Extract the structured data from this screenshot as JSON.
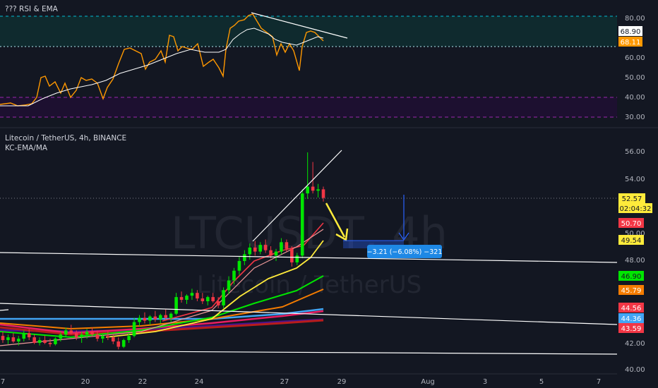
{
  "rsi_panel": {
    "title": "??? RSI & EMA",
    "right_axis_ticks": [
      "80.00",
      "60.00",
      "50.00",
      "40.00",
      "30.00"
    ],
    "rsi_value_badge": "68.11",
    "ema_value_badge": "68.90"
  },
  "price_panel": {
    "title": "Litecoin / TetherUS, 4h, BINANCE",
    "indicator": "KC-EMA/MA",
    "watermark_symbol": "LTCUSDT, 4h",
    "watermark_name": "Litecoin / TetherUS",
    "right_axis_ticks": [
      "56.00",
      "54.00",
      "50.00",
      "48.00",
      "42.00",
      "40.00"
    ],
    "current_price": "52.57",
    "countdown": "02:04:32",
    "badges": [
      {
        "text": "50.70",
        "color": "#f23645"
      },
      {
        "text": "49.54",
        "color": "#ffeb3b"
      },
      {
        "text": "46.90",
        "color": "#00e600"
      },
      {
        "text": "45.79",
        "color": "#f57c00"
      },
      {
        "text": "44.56",
        "color": "#f23645"
      },
      {
        "text": "44.36",
        "color": "#42a5f5"
      },
      {
        "text": "43.59",
        "color": "#f23645"
      }
    ],
    "measure_label": "−3.21 (−6.08%) −321"
  },
  "time_axis": {
    "labels": [
      "7",
      "20",
      "22",
      "24",
      "27",
      "29",
      "Aug",
      "3",
      "5",
      "7"
    ]
  },
  "chart_data": {
    "type": "candlestick",
    "title": "Litecoin / TetherUS, 4h, BINANCE",
    "ylim": [
      40,
      57
    ],
    "x_labels": [
      "7",
      "20",
      "22",
      "24",
      "27",
      "29",
      "Aug",
      "3",
      "5",
      "7"
    ],
    "last_price": 52.57,
    "candles": [
      {
        "o": 42.5,
        "h": 42.8,
        "l": 42.0,
        "c": 42.2
      },
      {
        "o": 42.2,
        "h": 42.6,
        "l": 41.9,
        "c": 42.4
      },
      {
        "o": 42.4,
        "h": 42.7,
        "l": 42.0,
        "c": 42.1
      },
      {
        "o": 42.1,
        "h": 42.5,
        "l": 41.8,
        "c": 42.3
      },
      {
        "o": 42.3,
        "h": 42.9,
        "l": 42.1,
        "c": 42.7
      },
      {
        "o": 42.7,
        "h": 43.0,
        "l": 42.2,
        "c": 42.4
      },
      {
        "o": 42.4,
        "h": 42.6,
        "l": 41.9,
        "c": 42.0
      },
      {
        "o": 42.0,
        "h": 42.4,
        "l": 41.8,
        "c": 42.2
      },
      {
        "o": 42.2,
        "h": 42.5,
        "l": 41.9,
        "c": 42.0
      },
      {
        "o": 42.0,
        "h": 42.3,
        "l": 41.7,
        "c": 41.9
      },
      {
        "o": 41.9,
        "h": 42.4,
        "l": 41.8,
        "c": 42.3
      },
      {
        "o": 42.3,
        "h": 42.8,
        "l": 42.1,
        "c": 42.6
      },
      {
        "o": 42.6,
        "h": 43.1,
        "l": 42.4,
        "c": 42.9
      },
      {
        "o": 42.9,
        "h": 43.3,
        "l": 42.6,
        "c": 42.7
      },
      {
        "o": 42.7,
        "h": 42.9,
        "l": 42.2,
        "c": 42.4
      },
      {
        "o": 42.4,
        "h": 42.8,
        "l": 42.0,
        "c": 42.6
      },
      {
        "o": 42.6,
        "h": 43.0,
        "l": 42.3,
        "c": 42.8
      },
      {
        "o": 42.8,
        "h": 43.1,
        "l": 42.5,
        "c": 42.6
      },
      {
        "o": 42.6,
        "h": 42.9,
        "l": 42.1,
        "c": 42.3
      },
      {
        "o": 42.3,
        "h": 42.7,
        "l": 42.0,
        "c": 42.5
      },
      {
        "o": 42.5,
        "h": 42.9,
        "l": 42.2,
        "c": 42.4
      },
      {
        "o": 42.4,
        "h": 42.6,
        "l": 41.9,
        "c": 42.1
      },
      {
        "o": 42.1,
        "h": 42.4,
        "l": 41.5,
        "c": 41.7
      },
      {
        "o": 41.7,
        "h": 42.3,
        "l": 41.6,
        "c": 42.2
      },
      {
        "o": 42.2,
        "h": 42.7,
        "l": 42.0,
        "c": 42.5
      },
      {
        "o": 42.5,
        "h": 43.8,
        "l": 42.4,
        "c": 43.5
      },
      {
        "o": 43.5,
        "h": 44.0,
        "l": 43.2,
        "c": 43.8
      },
      {
        "o": 43.8,
        "h": 44.2,
        "l": 43.4,
        "c": 43.6
      },
      {
        "o": 43.6,
        "h": 44.0,
        "l": 43.3,
        "c": 43.9
      },
      {
        "o": 43.9,
        "h": 44.3,
        "l": 43.5,
        "c": 43.7
      },
      {
        "o": 43.7,
        "h": 44.1,
        "l": 43.4,
        "c": 44.0
      },
      {
        "o": 44.0,
        "h": 44.4,
        "l": 43.6,
        "c": 43.8
      },
      {
        "o": 43.8,
        "h": 44.2,
        "l": 43.5,
        "c": 44.1
      },
      {
        "o": 44.1,
        "h": 45.6,
        "l": 44.0,
        "c": 45.3
      },
      {
        "o": 45.3,
        "h": 45.7,
        "l": 44.9,
        "c": 45.1
      },
      {
        "o": 45.1,
        "h": 45.5,
        "l": 44.8,
        "c": 45.4
      },
      {
        "o": 45.4,
        "h": 45.9,
        "l": 45.1,
        "c": 45.6
      },
      {
        "o": 45.6,
        "h": 45.8,
        "l": 45.0,
        "c": 45.2
      },
      {
        "o": 45.2,
        "h": 45.6,
        "l": 44.8,
        "c": 45.0
      },
      {
        "o": 45.0,
        "h": 45.4,
        "l": 44.7,
        "c": 45.3
      },
      {
        "o": 45.3,
        "h": 45.6,
        "l": 44.9,
        "c": 45.0
      },
      {
        "o": 45.0,
        "h": 45.3,
        "l": 44.5,
        "c": 44.7
      },
      {
        "o": 44.7,
        "h": 46.0,
        "l": 44.5,
        "c": 45.8
      },
      {
        "o": 45.8,
        "h": 46.8,
        "l": 45.5,
        "c": 46.5
      },
      {
        "o": 46.5,
        "h": 47.4,
        "l": 46.2,
        "c": 47.2
      },
      {
        "o": 47.2,
        "h": 48.2,
        "l": 46.9,
        "c": 47.9
      },
      {
        "o": 47.9,
        "h": 48.7,
        "l": 47.6,
        "c": 48.4
      },
      {
        "o": 48.4,
        "h": 49.2,
        "l": 48.0,
        "c": 48.9
      },
      {
        "o": 48.9,
        "h": 49.4,
        "l": 48.3,
        "c": 48.6
      },
      {
        "o": 48.6,
        "h": 49.3,
        "l": 48.4,
        "c": 49.1
      },
      {
        "o": 49.1,
        "h": 49.5,
        "l": 48.5,
        "c": 48.7
      },
      {
        "o": 48.7,
        "h": 49.0,
        "l": 48.1,
        "c": 48.3
      },
      {
        "o": 48.3,
        "h": 48.8,
        "l": 47.9,
        "c": 48.6
      },
      {
        "o": 48.6,
        "h": 49.6,
        "l": 48.4,
        "c": 49.3
      },
      {
        "o": 49.3,
        "h": 49.5,
        "l": 48.6,
        "c": 48.8
      },
      {
        "o": 48.8,
        "h": 49.0,
        "l": 47.5,
        "c": 47.8
      },
      {
        "o": 47.8,
        "h": 48.5,
        "l": 47.6,
        "c": 48.3
      },
      {
        "o": 48.3,
        "h": 53.2,
        "l": 48.1,
        "c": 52.9
      },
      {
        "o": 52.9,
        "h": 55.9,
        "l": 52.5,
        "c": 53.4
      },
      {
        "o": 53.4,
        "h": 55.2,
        "l": 52.9,
        "c": 53.1
      },
      {
        "o": 53.1,
        "h": 53.6,
        "l": 52.6,
        "c": 53.2
      },
      {
        "o": 53.2,
        "h": 53.4,
        "l": 52.3,
        "c": 52.57
      }
    ]
  }
}
